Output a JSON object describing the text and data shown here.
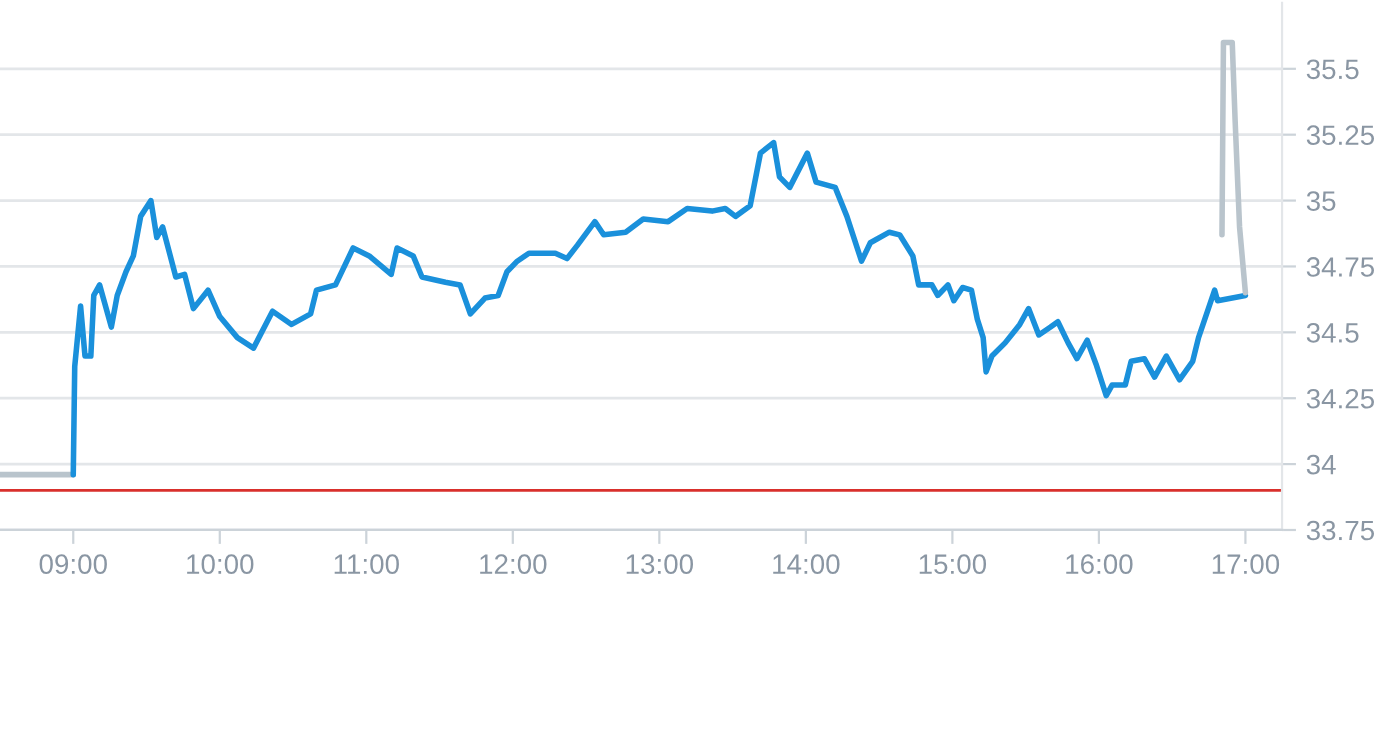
{
  "chart_data": {
    "type": "line",
    "xlim": [
      8.5,
      17.25
    ],
    "ylim": [
      33.75,
      35.75
    ],
    "xticks": [
      {
        "value": 9,
        "label": "09:00"
      },
      {
        "value": 10,
        "label": "10:00"
      },
      {
        "value": 11,
        "label": "11:00"
      },
      {
        "value": 12,
        "label": "12:00"
      },
      {
        "value": 13,
        "label": "13:00"
      },
      {
        "value": 14,
        "label": "14:00"
      },
      {
        "value": 15,
        "label": "15:00"
      },
      {
        "value": 16,
        "label": "16:00"
      },
      {
        "value": 17,
        "label": "17:00"
      }
    ],
    "yticks": [
      33.75,
      {
        "value": 34,
        "label": "34"
      },
      34.25,
      34.5,
      34.75,
      {
        "value": 35,
        "label": "35"
      },
      35.25,
      35.5
    ],
    "grid": "y",
    "legend": false,
    "marker": "none",
    "line_style": "solid",
    "series": [
      {
        "color": "#b9c4cc",
        "x": [
          8.5,
          9.0
        ],
        "values": [
          33.96,
          33.96
        ]
      },
      {
        "color": "#1a90db",
        "x": [
          9.0,
          9.01,
          9.05,
          9.08,
          9.12,
          9.14,
          9.18,
          9.21,
          9.26,
          9.3,
          9.36,
          9.41,
          9.46,
          9.53,
          9.57,
          9.61,
          9.7,
          9.76,
          9.82,
          9.92,
          10.0,
          10.12,
          10.23,
          10.36,
          10.49,
          10.62,
          10.66,
          10.79,
          10.91,
          11.02,
          11.17,
          11.21,
          11.32,
          11.38,
          11.54,
          11.64,
          11.71,
          11.81,
          11.9,
          11.96,
          12.03,
          12.11,
          12.29,
          12.37,
          12.44,
          12.56,
          12.62,
          12.77,
          12.89,
          13.06,
          13.19,
          13.36,
          13.45,
          13.52,
          13.62,
          13.69,
          13.78,
          13.82,
          13.89,
          14.01,
          14.07,
          14.2,
          14.28,
          14.38,
          14.44,
          14.57,
          14.64,
          14.73,
          14.77,
          14.86,
          14.9,
          14.97,
          15.01,
          15.07,
          15.13,
          15.17,
          15.21,
          15.23,
          15.27,
          15.36,
          15.46,
          15.52,
          15.59,
          15.67,
          15.72,
          15.79,
          15.85,
          15.92,
          15.98,
          16.05,
          16.09,
          16.18,
          16.22,
          16.31,
          16.38,
          16.46,
          16.55,
          16.64,
          16.68,
          16.79,
          16.81,
          17.0
        ],
        "values": [
          33.96,
          34.37,
          34.6,
          34.41,
          34.41,
          34.64,
          34.68,
          34.62,
          34.52,
          34.64,
          34.73,
          34.79,
          34.94,
          35.0,
          34.86,
          34.9,
          34.71,
          34.72,
          34.59,
          34.66,
          34.56,
          34.48,
          34.44,
          34.58,
          34.53,
          34.57,
          34.66,
          34.68,
          34.82,
          34.79,
          34.72,
          34.82,
          34.79,
          34.71,
          34.69,
          34.68,
          34.57,
          34.63,
          34.64,
          34.73,
          34.77,
          34.8,
          34.8,
          34.78,
          34.83,
          34.92,
          34.87,
          34.88,
          34.93,
          34.92,
          34.97,
          34.96,
          34.97,
          34.94,
          34.98,
          35.18,
          35.22,
          35.09,
          35.05,
          35.18,
          35.07,
          35.05,
          34.94,
          34.77,
          34.84,
          34.88,
          34.87,
          34.79,
          34.68,
          34.68,
          34.64,
          34.68,
          34.62,
          34.67,
          34.66,
          34.55,
          34.48,
          34.35,
          34.41,
          34.46,
          34.53,
          34.59,
          34.49,
          34.52,
          34.54,
          34.46,
          34.4,
          34.47,
          34.38,
          34.26,
          34.3,
          34.3,
          34.39,
          34.4,
          34.33,
          34.41,
          34.32,
          34.39,
          34.48,
          34.66,
          34.62,
          34.64
        ]
      },
      {
        "color": "#b9c4cc",
        "x": [
          16.84,
          16.85,
          16.91,
          16.93,
          16.96,
          17.0
        ],
        "values": [
          34.87,
          35.6,
          35.6,
          35.3,
          34.9,
          34.65
        ]
      }
    ],
    "ref_lines": [
      {
        "axis": "y",
        "value": 33.9,
        "color": "#d9302c",
        "line_style": "solid"
      }
    ]
  }
}
